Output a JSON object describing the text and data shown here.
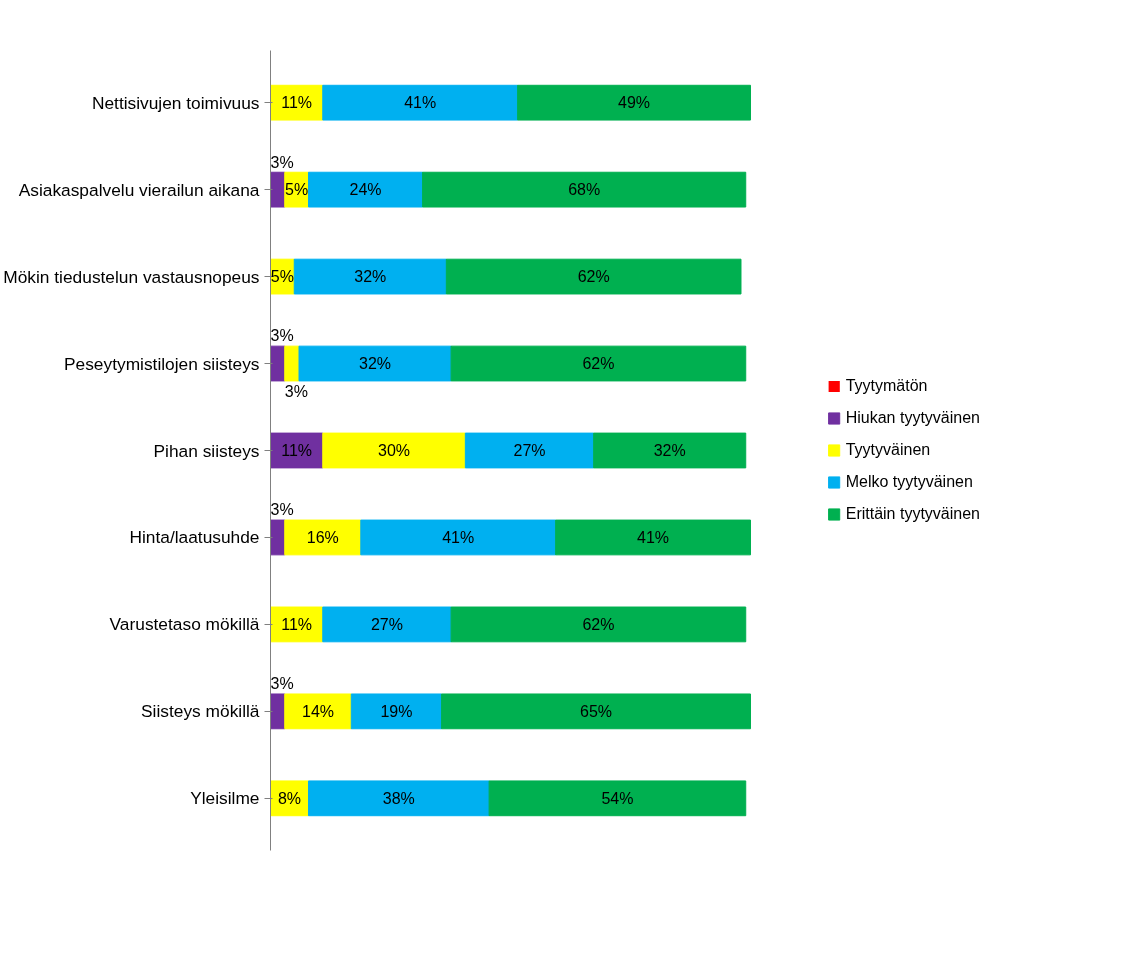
{
  "chart_data": {
    "type": "bar",
    "orientation": "horizontal",
    "stacked": true,
    "legend": "right",
    "grid": false,
    "categories": [
      "Nettisivujen toimivuus",
      "Asiakaspalvelu vierailun aikana",
      "Mökin tiedustelun vastausnopeus",
      "Peseytymistilojen siisteys",
      "Pihan siisteys",
      "Hinta/laatusuhde",
      "Varustetaso mökillä",
      "Siisteys mökillä",
      "Yleisilme"
    ],
    "series": [
      {
        "name": "Tyytymätön",
        "color": "#ff0000",
        "values": [
          null,
          null,
          null,
          null,
          null,
          null,
          null,
          null,
          null
        ]
      },
      {
        "name": "Hiukan tyytyväinen",
        "color": "#7030a0",
        "values": [
          null,
          3,
          null,
          3,
          11,
          3,
          null,
          3,
          null
        ],
        "value_labels": [
          null,
          "3%",
          null,
          "3%",
          "11%",
          "3%",
          null,
          "3%",
          null
        ]
      },
      {
        "name": "Tyytyväinen",
        "color": "#ffff00",
        "values": [
          11,
          5,
          5,
          3,
          30,
          16,
          11,
          14,
          8
        ],
        "value_labels": [
          "11%",
          "5%",
          "5%",
          "3%",
          "30%",
          "16%",
          "11%",
          "14%",
          "8%"
        ]
      },
      {
        "name": "Melko tyytyväinen",
        "color": "#00b0f0",
        "values": [
          41,
          24,
          32,
          32,
          27,
          41,
          27,
          19,
          38
        ],
        "value_labels": [
          "41%",
          "24%",
          "32%",
          "32%",
          "27%",
          "41%",
          "27%",
          "19%",
          "38%"
        ]
      },
      {
        "name": "Erittäin tyytyväinen",
        "color": "#00b050",
        "values": [
          49,
          68,
          62,
          62,
          32,
          41,
          62,
          65,
          54
        ],
        "value_labels": [
          "49%",
          "68%",
          "62%",
          "62%",
          "32%",
          "41%",
          "62%",
          "65%",
          "54%"
        ]
      }
    ]
  }
}
